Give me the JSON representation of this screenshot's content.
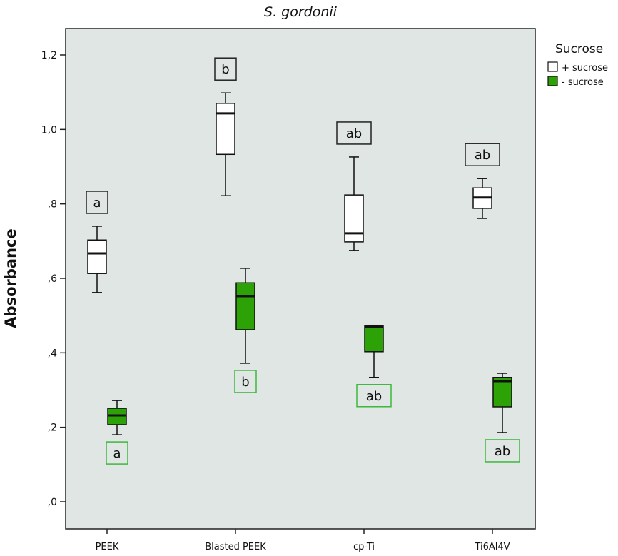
{
  "chart_data": {
    "type": "boxplot",
    "title": "S. gordonii",
    "xlabel": "",
    "ylabel": "Absorbance",
    "ylim": [
      0,
      1.2
    ],
    "yticks": [
      ",0",
      ",2",
      ",4",
      ",6",
      ",8",
      "1,0",
      "1,2"
    ],
    "ytick_values": [
      0,
      0.2,
      0.4,
      0.6,
      0.8,
      1.0,
      1.2
    ],
    "categories": [
      "PEEK",
      "Blasted PEEK",
      "cp-Ti",
      "Ti6Al4V"
    ],
    "legend": {
      "title": "Sucrose",
      "placement": "right"
    },
    "background": "#e0e6e3",
    "series": [
      {
        "name": "+ sucrose",
        "color": "#ffffff",
        "label_color": "#222222",
        "boxes": [
          {
            "min": 0.562,
            "q1": 0.613,
            "median": 0.667,
            "q3": 0.703,
            "max": 0.74,
            "letter": "a"
          },
          {
            "min": 0.822,
            "q1": 0.933,
            "median": 1.043,
            "q3": 1.07,
            "max": 1.098,
            "letter": "b"
          },
          {
            "min": 0.675,
            "q1": 0.698,
            "median": 0.721,
            "q3": 0.824,
            "max": 0.926,
            "letter": "ab"
          },
          {
            "min": 0.761,
            "q1": 0.788,
            "median": 0.817,
            "q3": 0.843,
            "max": 0.868,
            "letter": "ab"
          }
        ]
      },
      {
        "name": "- sucrose",
        "color": "#2ca206",
        "label_color": "#3cb83c",
        "boxes": [
          {
            "min": 0.18,
            "q1": 0.207,
            "median": 0.232,
            "q3": 0.251,
            "max": 0.272,
            "letter": "a"
          },
          {
            "min": 0.372,
            "q1": 0.462,
            "median": 0.552,
            "q3": 0.588,
            "max": 0.627,
            "letter": "b"
          },
          {
            "min": 0.334,
            "q1": 0.403,
            "median": 0.47,
            "q3": 0.472,
            "max": 0.474,
            "letter": "ab"
          },
          {
            "min": 0.186,
            "q1": 0.255,
            "median": 0.324,
            "q3": 0.334,
            "max": 0.345,
            "letter": "ab"
          }
        ]
      }
    ]
  }
}
